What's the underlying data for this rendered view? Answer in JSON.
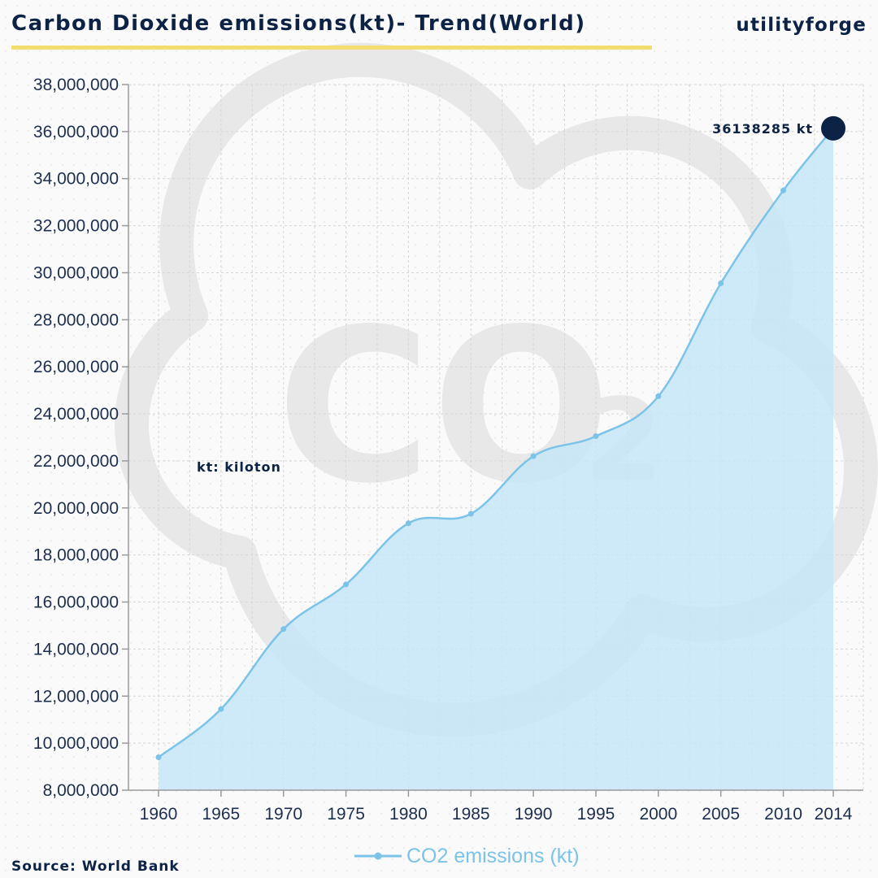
{
  "header": {
    "title": "Carbon Dioxide emissions(kt)- Trend(World)",
    "brand": "utilityforge"
  },
  "footer": {
    "source": "Source: World Bank"
  },
  "watermark": {
    "text": "CO",
    "subscript": "2"
  },
  "colors": {
    "line": "#7cc3e8",
    "fill": "#c6e6f8",
    "title": "#0d2346",
    "accent_underline": "#f2dd6e",
    "highlight_dot": "#0d2346",
    "axis_text": "#1d2f4f",
    "grid": "#d6d6d6",
    "watermark": "#e8e8e8"
  },
  "chart_data": {
    "type": "area",
    "title": "Carbon Dioxide emissions(kt)- Trend(World)",
    "xlabel": "",
    "ylabel": "",
    "xlim": [
      1960,
      2014
    ],
    "ylim": [
      8000000,
      38000000
    ],
    "x_ticks": [
      1960,
      1965,
      1970,
      1975,
      1980,
      1985,
      1990,
      1995,
      2000,
      2005,
      2010,
      2014
    ],
    "y_ticks": [
      8000000,
      10000000,
      12000000,
      14000000,
      16000000,
      18000000,
      20000000,
      22000000,
      24000000,
      26000000,
      28000000,
      30000000,
      32000000,
      34000000,
      36000000,
      38000000
    ],
    "y_tick_labels": [
      "8,000,000",
      "10,000,000",
      "12,000,000",
      "14,000,000",
      "16,000,000",
      "18,000,000",
      "20,000,000",
      "22,000,000",
      "24,000,000",
      "26,000,000",
      "28,000,000",
      "30,000,000",
      "32,000,000",
      "34,000,000",
      "36,000,000",
      "38,000,000"
    ],
    "grid": true,
    "legend": {
      "position": "bottom",
      "entries": [
        "CO2 emissions (kt)"
      ]
    },
    "series": [
      {
        "name": "CO2 emissions (kt)",
        "x": [
          1960,
          1965,
          1970,
          1975,
          1980,
          1985,
          1990,
          1995,
          2000,
          2005,
          2010,
          2014
        ],
        "values": [
          9400000,
          11450000,
          14850000,
          16750000,
          19350000,
          19750000,
          22200000,
          23050000,
          24750000,
          29550000,
          33500000,
          36138285
        ]
      }
    ],
    "annotations": [
      {
        "text": "36138285 kt",
        "x": 2014,
        "y": 36138285
      },
      {
        "text": "kt: kiloton",
        "x": 1963,
        "y": 21700000
      }
    ]
  }
}
